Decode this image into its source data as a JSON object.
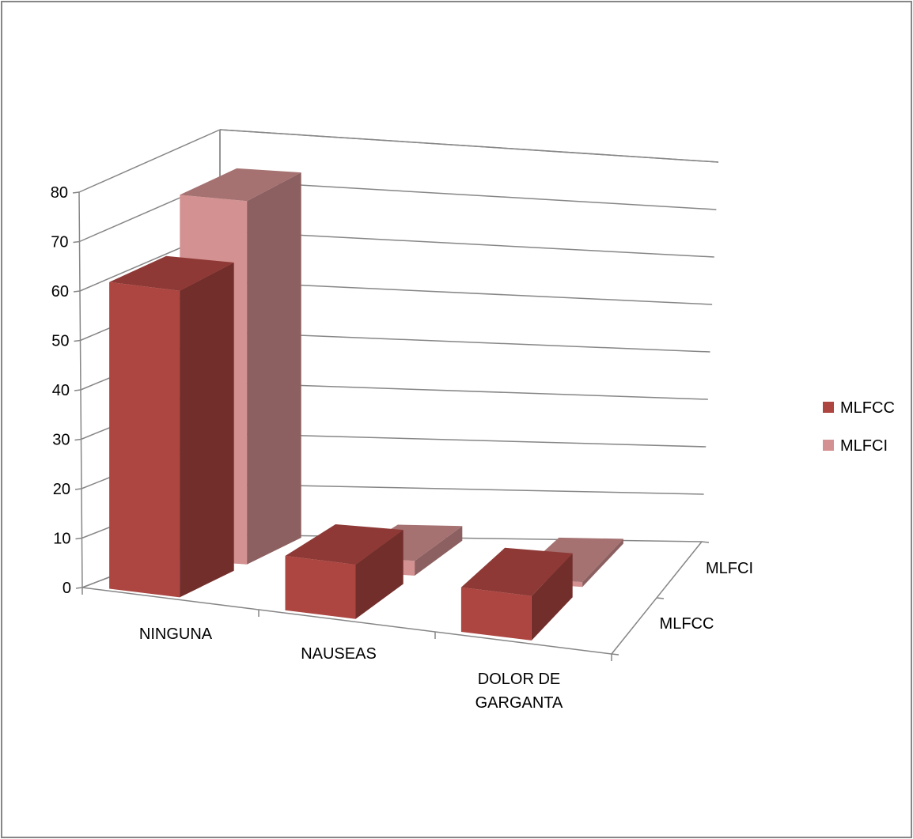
{
  "chart_data": {
    "type": "bar",
    "is_3d": true,
    "categories": [
      "NINGUNA",
      "NAUSEAS",
      "DOLOR DE GARGANTA"
    ],
    "category_label_lines": [
      [
        "NINGUNA"
      ],
      [
        "NAUSEAS"
      ],
      [
        "DOLOR DE",
        "GARGANTA"
      ]
    ],
    "series": [
      {
        "name": "MLFCC",
        "values": [
          62,
          11,
          9
        ],
        "color": "#ad4541"
      },
      {
        "name": "MLFCI",
        "values": [
          73,
          3,
          1
        ],
        "color": "#d49191"
      }
    ],
    "depth_labels": [
      "MLFCC",
      "MLFCI"
    ],
    "y_ticks": [
      0,
      10,
      20,
      30,
      40,
      50,
      60,
      70,
      80
    ],
    "ylim": [
      0,
      80
    ],
    "grid": true,
    "legend_position": "right",
    "colors": {
      "border": "#868686",
      "axis": "#868686",
      "gridline": "#868686",
      "text": "#000000"
    }
  }
}
